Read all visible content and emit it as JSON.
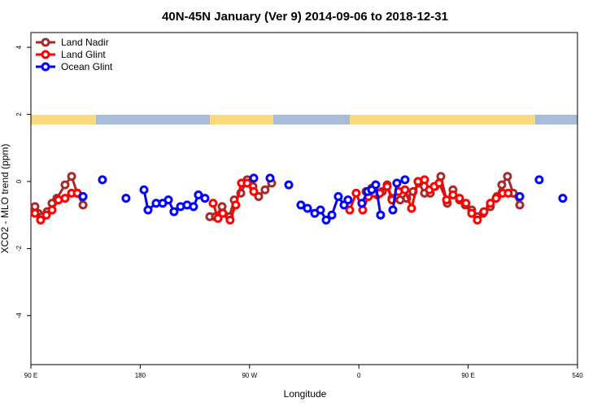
{
  "chart_data": {
    "type": "line",
    "title": "40N-45N January (Ver 9)   2014-09-06 to 2018-12-31",
    "x_label": "Longitude",
    "y_label": "XCO2 - MLO trend (ppm)",
    "xlim": [
      90,
      540
    ],
    "ylim": [
      -5.46,
      4.44
    ],
    "xticks": [
      {
        "value": 90,
        "label": "90 E"
      },
      180,
      {
        "value": 270,
        "label": "90 W"
      },
      {
        "value": 360,
        "label": "0"
      },
      {
        "value": 450,
        "label": "90 E"
      },
      540
    ],
    "yticks": [
      -4,
      -2,
      0,
      2,
      4
    ],
    "legend": "top-left",
    "series": [
      {
        "name": "Land Nadir",
        "color": "#a52a2a",
        "x": [
          93.3,
          96,
          99.4,
          103.4,
          107.4,
          111.4,
          118.1,
          123.5,
          128.2,
          132.9,
          null,
          237.3,
          242,
          247.4,
          253.4,
          257.4,
          262.8,
          268.1,
          272.8,
          277.5,
          282.8,
          288.2,
          null,
          365.9,
          370.6,
          375.2,
          379.3,
          383.3,
          387.3,
          394,
          399.4,
          404.7,
          409.4,
          414.1,
          418.8,
          422.8,
          427.5,
          432.8,
          437.5,
          442.9,
          447.6,
          452.9,
          457.6,
          462.3,
          468.3,
          473.7,
          477.7,
          482.4,
          487.1,
          492.5
        ],
        "values": [
          -0.75,
          -0.95,
          -1.05,
          -0.9,
          -0.65,
          -0.5,
          -0.1,
          0.15,
          -0.35,
          -0.7,
          null,
          -1.05,
          -1.05,
          -0.75,
          -1.05,
          -0.55,
          -0.35,
          0.05,
          -0.15,
          -0.45,
          -0.25,
          -0.05,
          null,
          -0.3,
          -0.2,
          -0.4,
          -0.3,
          -0.1,
          -0.5,
          -0.55,
          -0.5,
          -0.3,
          -0.05,
          -0.35,
          -0.35,
          -0.15,
          0.15,
          -0.65,
          -0.25,
          -0.55,
          -0.7,
          -0.85,
          -1.05,
          -0.95,
          -0.75,
          -0.45,
          -0.1,
          0.15,
          -0.35,
          -0.7
        ]
      },
      {
        "name": "Land Glint",
        "color": "#ff0000",
        "x": [
          93.3,
          98,
          102.7,
          107.4,
          112.7,
          118.1,
          123.5,
          128.2,
          null,
          240,
          244,
          248,
          254,
          258.7,
          263.4,
          268.1,
          273.5,
          null,
          352.5,
          357.8,
          363.2,
          367.9,
          372.6,
          377.3,
          383.3,
          387.3,
          392.7,
          398,
          403.4,
          408.7,
          414.1,
          418.1,
          422.1,
          426.1,
          432.2,
          437.5,
          442.9,
          448.2,
          452.9,
          457.6,
          463,
          468.3,
          473,
          478.4,
          483
        ],
        "values": [
          -0.95,
          -1.15,
          -1.0,
          -0.85,
          -0.55,
          -0.5,
          -0.35,
          -0.35,
          null,
          -0.65,
          -1.1,
          -0.95,
          -1.15,
          -0.7,
          -0.05,
          -0.05,
          -0.3,
          null,
          -0.85,
          -0.35,
          -0.85,
          -0.45,
          -0.35,
          -0.35,
          -0.15,
          -0.55,
          -0.3,
          -0.25,
          -0.8,
          0.0,
          0.05,
          -0.25,
          -0.15,
          -0.05,
          -0.55,
          -0.4,
          -0.5,
          -0.65,
          -0.95,
          -1.15,
          -0.9,
          -0.65,
          -0.5,
          -0.35,
          -0.35
        ]
      },
      {
        "name": "Ocean Glint",
        "color": "#0000ff",
        "x": [
          132.9,
          null,
          148.9,
          null,
          168.3,
          null,
          183.1,
          186.4,
          193.1,
          198.5,
          203.2,
          207.8,
          213.2,
          218.6,
          223.9,
          227.9,
          233.3,
          null,
          273.5,
          null,
          286.9,
          null,
          302.3,
          null,
          312.3,
          317.7,
          323.7,
          328.4,
          333.1,
          337.8,
          343.1,
          347.8,
          351.1,
          null,
          362.5,
          367.2,
          370.6,
          373.9,
          377.9,
          null,
          388,
          391.3,
          398,
          null,
          492.5,
          null,
          508.5,
          null,
          527.9
        ],
        "values": [
          -0.45,
          null,
          0.05,
          null,
          -0.5,
          null,
          -0.25,
          -0.85,
          -0.65,
          -0.65,
          -0.55,
          -0.9,
          -0.75,
          -0.7,
          -0.75,
          -0.4,
          -0.5,
          null,
          0.1,
          null,
          0.1,
          null,
          -0.1,
          null,
          -0.7,
          -0.8,
          -0.95,
          -0.85,
          -1.15,
          -1.0,
          -0.45,
          -0.7,
          -0.55,
          null,
          -0.65,
          -0.3,
          -0.25,
          -0.1,
          -1.0,
          null,
          -0.85,
          -0.05,
          0.05,
          null,
          -0.45,
          null,
          0.05,
          null,
          -0.5
        ]
      }
    ]
  }
}
